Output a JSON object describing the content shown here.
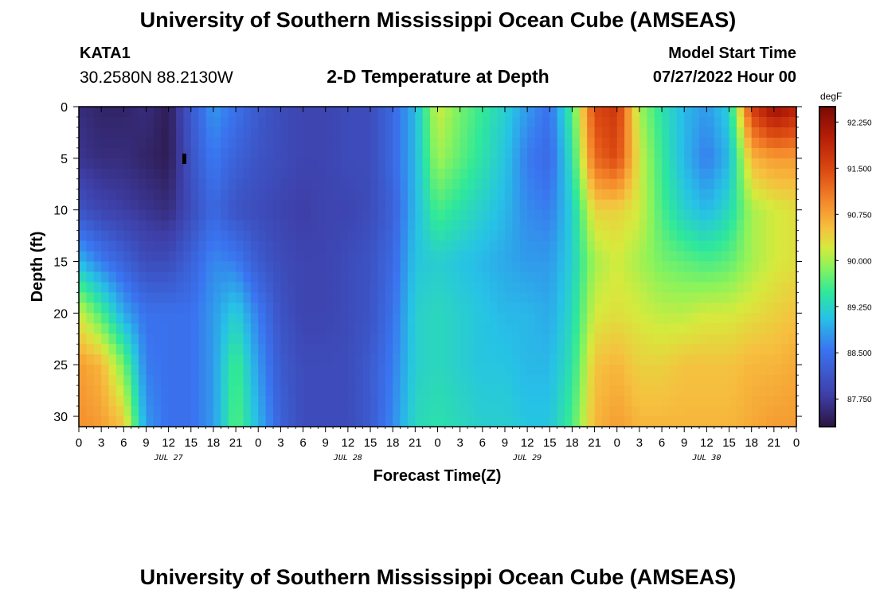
{
  "header": {
    "title": "University of Southern Mississippi Ocean Cube (AMSEAS)",
    "station": "KATA1",
    "coords": "30.2580N  88.2130W",
    "subtitle": "2-D Temperature at Depth",
    "start_label": "Model Start Time",
    "start_value": "07/27/2022 Hour 00"
  },
  "footer": {
    "title": "University of Southern Mississippi Ocean Cube (AMSEAS)"
  },
  "chart_data": {
    "type": "heatmap",
    "title": "2-D Temperature at Depth",
    "xlabel": "Forecast Time(Z)",
    "ylabel": "Depth (ft)",
    "x_range_hours": [
      0,
      96
    ],
    "y_range_ft": [
      0,
      31
    ],
    "x_tick_labels": [
      "0",
      "3",
      "6",
      "9",
      "12",
      "15",
      "18",
      "21",
      "0",
      "3",
      "6",
      "9",
      "12",
      "15",
      "18",
      "21",
      "0",
      "3",
      "6",
      "9",
      "12",
      "15",
      "18",
      "21",
      "0",
      "3",
      "6",
      "9",
      "12",
      "15",
      "18",
      "21",
      "0"
    ],
    "y_tick_labels": [
      "0",
      "5",
      "10",
      "15",
      "20",
      "25",
      "30"
    ],
    "y_tick_values": [
      0,
      5,
      10,
      15,
      20,
      25,
      30
    ],
    "date_labels": [
      "JUL 27",
      "JUL 28",
      "JUL 29",
      "JUL 30"
    ],
    "date_label_hours": [
      12,
      36,
      60,
      84
    ],
    "colorbar": {
      "unit": "degF",
      "range": [
        87.3,
        92.5
      ],
      "tick_labels": [
        "92.250",
        "91.500",
        "90.750",
        "90.000",
        "89.250",
        "88.500",
        "87.750"
      ],
      "tick_values": [
        92.25,
        91.5,
        90.75,
        90.0,
        89.25,
        88.5,
        87.75
      ]
    },
    "grid_hours": [
      0,
      3,
      6,
      9,
      12,
      15,
      18,
      21,
      24,
      27,
      30,
      33,
      36,
      39,
      42,
      45,
      48,
      51,
      54,
      57,
      60,
      63,
      66,
      69,
      72,
      75,
      78,
      81,
      84,
      87,
      90,
      93,
      96
    ],
    "grid_depths_ft": [
      0,
      5,
      10,
      15,
      20,
      25,
      31
    ],
    "temperatures_degF": [
      [
        87.6,
        87.5,
        87.5,
        87.6,
        87.4,
        88.2,
        88.8,
        88.5,
        88.2,
        88.0,
        87.9,
        87.9,
        88.0,
        88.0,
        88.4,
        89.0,
        90.2,
        89.8,
        89.5,
        89.2,
        88.8,
        88.5,
        89.6,
        91.5,
        91.7,
        90.0,
        89.4,
        89.0,
        88.8,
        89.2,
        91.6,
        92.3,
        92.0
      ],
      [
        87.7,
        87.6,
        87.6,
        87.5,
        87.4,
        88.1,
        88.6,
        88.3,
        88.1,
        88.0,
        87.9,
        87.9,
        88.0,
        88.0,
        88.4,
        89.0,
        90.0,
        89.7,
        89.4,
        89.1,
        88.6,
        88.4,
        89.4,
        91.2,
        91.5,
        90.2,
        89.5,
        89.0,
        88.6,
        89.0,
        90.6,
        90.8,
        90.8
      ],
      [
        88.1,
        87.9,
        87.8,
        87.7,
        87.6,
        88.0,
        88.4,
        88.1,
        88.0,
        87.9,
        87.8,
        87.9,
        87.9,
        88.0,
        88.3,
        89.0,
        89.6,
        89.4,
        89.2,
        89.0,
        88.7,
        88.6,
        89.2,
        90.4,
        90.4,
        90.2,
        89.6,
        89.2,
        89.0,
        89.3,
        90.0,
        90.2,
        90.3
      ],
      [
        89.0,
        88.6,
        88.3,
        88.0,
        88.0,
        88.3,
        88.7,
        88.6,
        88.2,
        88.0,
        87.9,
        87.9,
        88.0,
        88.1,
        88.4,
        89.1,
        89.2,
        89.1,
        89.0,
        88.9,
        88.8,
        88.8,
        89.2,
        90.0,
        90.2,
        90.0,
        89.8,
        89.7,
        89.6,
        89.7,
        90.0,
        90.2,
        90.3
      ],
      [
        90.2,
        89.6,
        88.9,
        88.5,
        88.5,
        88.5,
        88.8,
        89.2,
        88.6,
        88.1,
        87.9,
        87.9,
        88.0,
        88.1,
        88.5,
        89.2,
        89.3,
        89.2,
        89.1,
        89.0,
        89.0,
        88.9,
        89.3,
        90.2,
        90.3,
        90.2,
        90.1,
        90.1,
        90.2,
        90.2,
        90.3,
        90.4,
        90.5
      ],
      [
        90.8,
        90.6,
        89.8,
        88.6,
        88.5,
        88.5,
        88.8,
        89.6,
        88.8,
        88.2,
        88.0,
        88.0,
        88.0,
        88.2,
        88.6,
        89.2,
        89.3,
        89.2,
        89.1,
        89.1,
        89.0,
        89.0,
        89.4,
        90.5,
        90.6,
        90.4,
        90.4,
        90.5,
        90.5,
        90.5,
        90.6,
        90.6,
        90.7
      ],
      [
        90.9,
        90.8,
        90.5,
        88.8,
        88.5,
        88.5,
        88.8,
        89.7,
        89.0,
        88.3,
        88.0,
        88.0,
        88.0,
        88.2,
        88.7,
        89.3,
        89.4,
        89.3,
        89.2,
        89.2,
        89.1,
        89.1,
        89.6,
        90.6,
        90.8,
        90.6,
        90.6,
        90.6,
        90.6,
        90.6,
        90.7,
        90.8,
        90.8
      ]
    ]
  }
}
